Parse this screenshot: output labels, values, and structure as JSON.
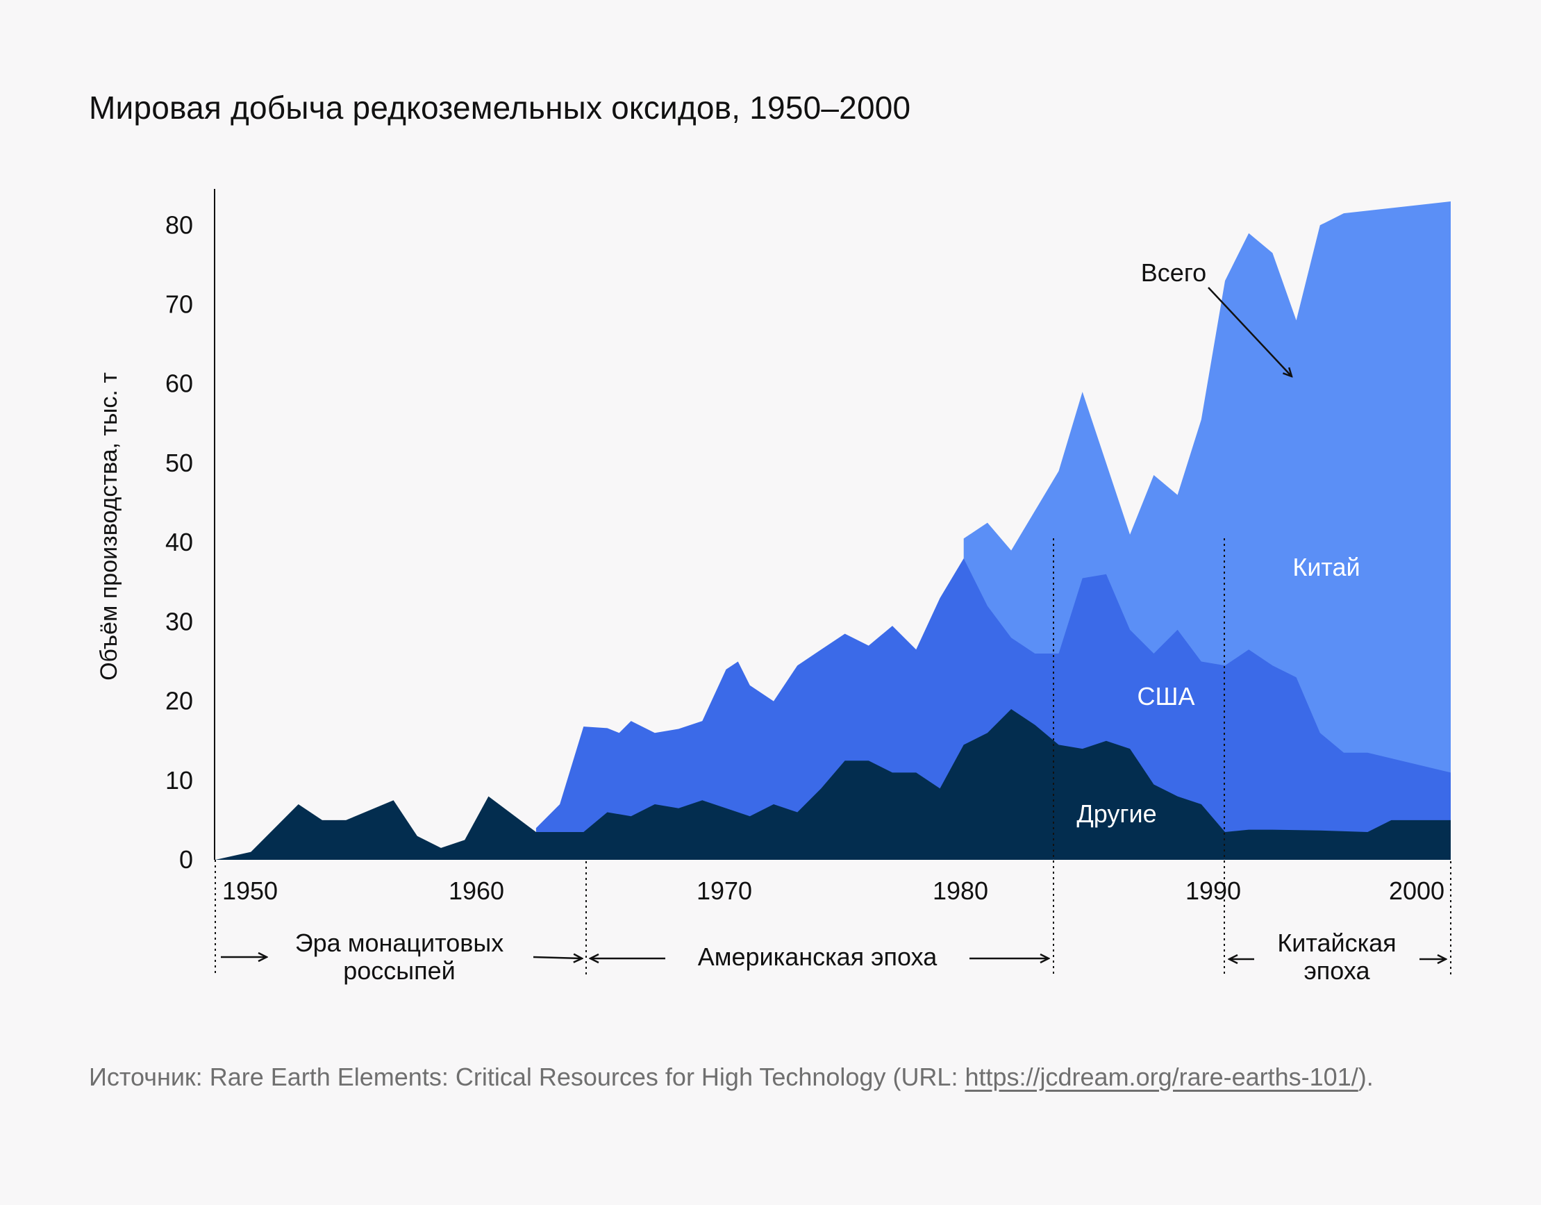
{
  "title": "Мировая добыча редкоземельных оксидов, 1950–2000",
  "source": {
    "prefix": "Источник: Rare Earth Elements: Critical Resources for High Technology (URL: ",
    "link_text": "https://jcdream.org/rare-earths-101/",
    "suffix": ")."
  },
  "colors": {
    "other": "#032d4f",
    "usa": "#3b6ae8",
    "china": "#5b8ff6",
    "background": "#f8f7f8"
  },
  "chart_data": {
    "type": "area",
    "stacked": true,
    "title": "Мировая добыча редкоземельных оксидов, 1950–2000",
    "xlabel": "",
    "ylabel": "Объём производства, тыс. т",
    "xlim": [
      1949.5,
      2001.5
    ],
    "ylim": [
      0,
      83
    ],
    "x_ticks": [
      1950,
      1960,
      1970,
      1980,
      1990,
      2000
    ],
    "y_ticks": [
      0,
      10,
      20,
      30,
      40,
      50,
      60,
      70,
      80
    ],
    "grid": false,
    "series": [
      {
        "name": "Другие",
        "color": "#032d4f",
        "points": [
          [
            1949.5,
            0
          ],
          [
            1951,
            1
          ],
          [
            1953,
            7
          ],
          [
            1954,
            5
          ],
          [
            1955,
            5
          ],
          [
            1957,
            7.5
          ],
          [
            1958,
            3
          ],
          [
            1959,
            1.5
          ],
          [
            1960,
            2.5
          ],
          [
            1961,
            8
          ],
          [
            1963,
            3.5
          ],
          [
            1965,
            3.5
          ],
          [
            1966,
            6
          ],
          [
            1967,
            5.5
          ],
          [
            1968,
            7
          ],
          [
            1969,
            6.5
          ],
          [
            1970,
            7.5
          ],
          [
            1971,
            6.5
          ],
          [
            1972,
            5.5
          ],
          [
            1973,
            7
          ],
          [
            1974,
            6
          ],
          [
            1975,
            9
          ],
          [
            1976,
            12.5
          ],
          [
            1977,
            12.5
          ],
          [
            1978,
            11
          ],
          [
            1979,
            11
          ],
          [
            1980,
            9
          ],
          [
            1981,
            14.5
          ],
          [
            1982,
            16
          ],
          [
            1983,
            19
          ],
          [
            1984,
            17
          ],
          [
            1985,
            14.5
          ],
          [
            1986,
            14
          ],
          [
            1987,
            15
          ],
          [
            1988,
            14
          ],
          [
            1989,
            9.5
          ],
          [
            1990,
            8
          ],
          [
            1991,
            7
          ],
          [
            1992,
            3.5
          ],
          [
            1993,
            3.8
          ],
          [
            1994,
            3.8
          ],
          [
            1996,
            3.7
          ],
          [
            1998,
            3.5
          ],
          [
            1999,
            5
          ],
          [
            2001.5,
            5
          ]
        ]
      },
      {
        "name": "США",
        "color": "#3b6ae8",
        "points": [
          [
            1963,
            4
          ],
          [
            1964,
            7
          ],
          [
            1965,
            16.8
          ],
          [
            1966,
            16.6
          ],
          [
            1966.5,
            16
          ],
          [
            1967,
            17.5
          ],
          [
            1968,
            16
          ],
          [
            1969,
            16.5
          ],
          [
            1970,
            17.5
          ],
          [
            1971,
            24
          ],
          [
            1971.5,
            25
          ],
          [
            1972,
            22
          ],
          [
            1973,
            20
          ],
          [
            1974,
            24.5
          ],
          [
            1975,
            26.5
          ],
          [
            1976,
            28.5
          ],
          [
            1977,
            27
          ],
          [
            1978,
            29.5
          ],
          [
            1979,
            26.5
          ],
          [
            1980,
            33
          ],
          [
            1981,
            38
          ],
          [
            1982,
            32
          ],
          [
            1983,
            28
          ],
          [
            1984,
            26
          ],
          [
            1985,
            26
          ],
          [
            1986,
            35.5
          ],
          [
            1987,
            36
          ],
          [
            1988,
            29
          ],
          [
            1989,
            26
          ],
          [
            1990,
            29
          ],
          [
            1991,
            25
          ],
          [
            1992,
            24.5
          ],
          [
            1993,
            26.5
          ],
          [
            1994,
            24.5
          ],
          [
            1995,
            23
          ],
          [
            1996,
            16
          ],
          [
            1997,
            13.5
          ],
          [
            1998,
            13.5
          ],
          [
            2001.5,
            11
          ]
        ]
      },
      {
        "name": "Китай",
        "color": "#5b8ff6",
        "points": [
          [
            1981,
            40.5
          ],
          [
            1982,
            42.5
          ],
          [
            1983,
            39
          ],
          [
            1985,
            49
          ],
          [
            1986,
            59
          ],
          [
            1987,
            50
          ],
          [
            1988,
            41
          ],
          [
            1989,
            48.5
          ],
          [
            1990,
            46
          ],
          [
            1991,
            55.5
          ],
          [
            1992,
            73
          ],
          [
            1993,
            79
          ],
          [
            1994,
            76.5
          ],
          [
            1995,
            68
          ],
          [
            1996,
            80
          ],
          [
            1997,
            81.5
          ],
          [
            2001.5,
            83
          ]
        ],
        "label": "Всего"
      }
    ],
    "annotations": {
      "total_label": "Всего",
      "series_labels": [
        "Китай",
        "США",
        "Другие"
      ]
    },
    "eras": [
      {
        "label_lines": [
          "Эра монацитовых",
          "россыпей"
        ],
        "from": 1949.5,
        "to": 1965
      },
      {
        "label_lines": [
          "Американская эпоха"
        ],
        "from": 1965,
        "to": 1985
      },
      {
        "label_lines": [
          "Китайская",
          "эпоха"
        ],
        "from": 1990.5,
        "to": 2001.5
      }
    ]
  }
}
